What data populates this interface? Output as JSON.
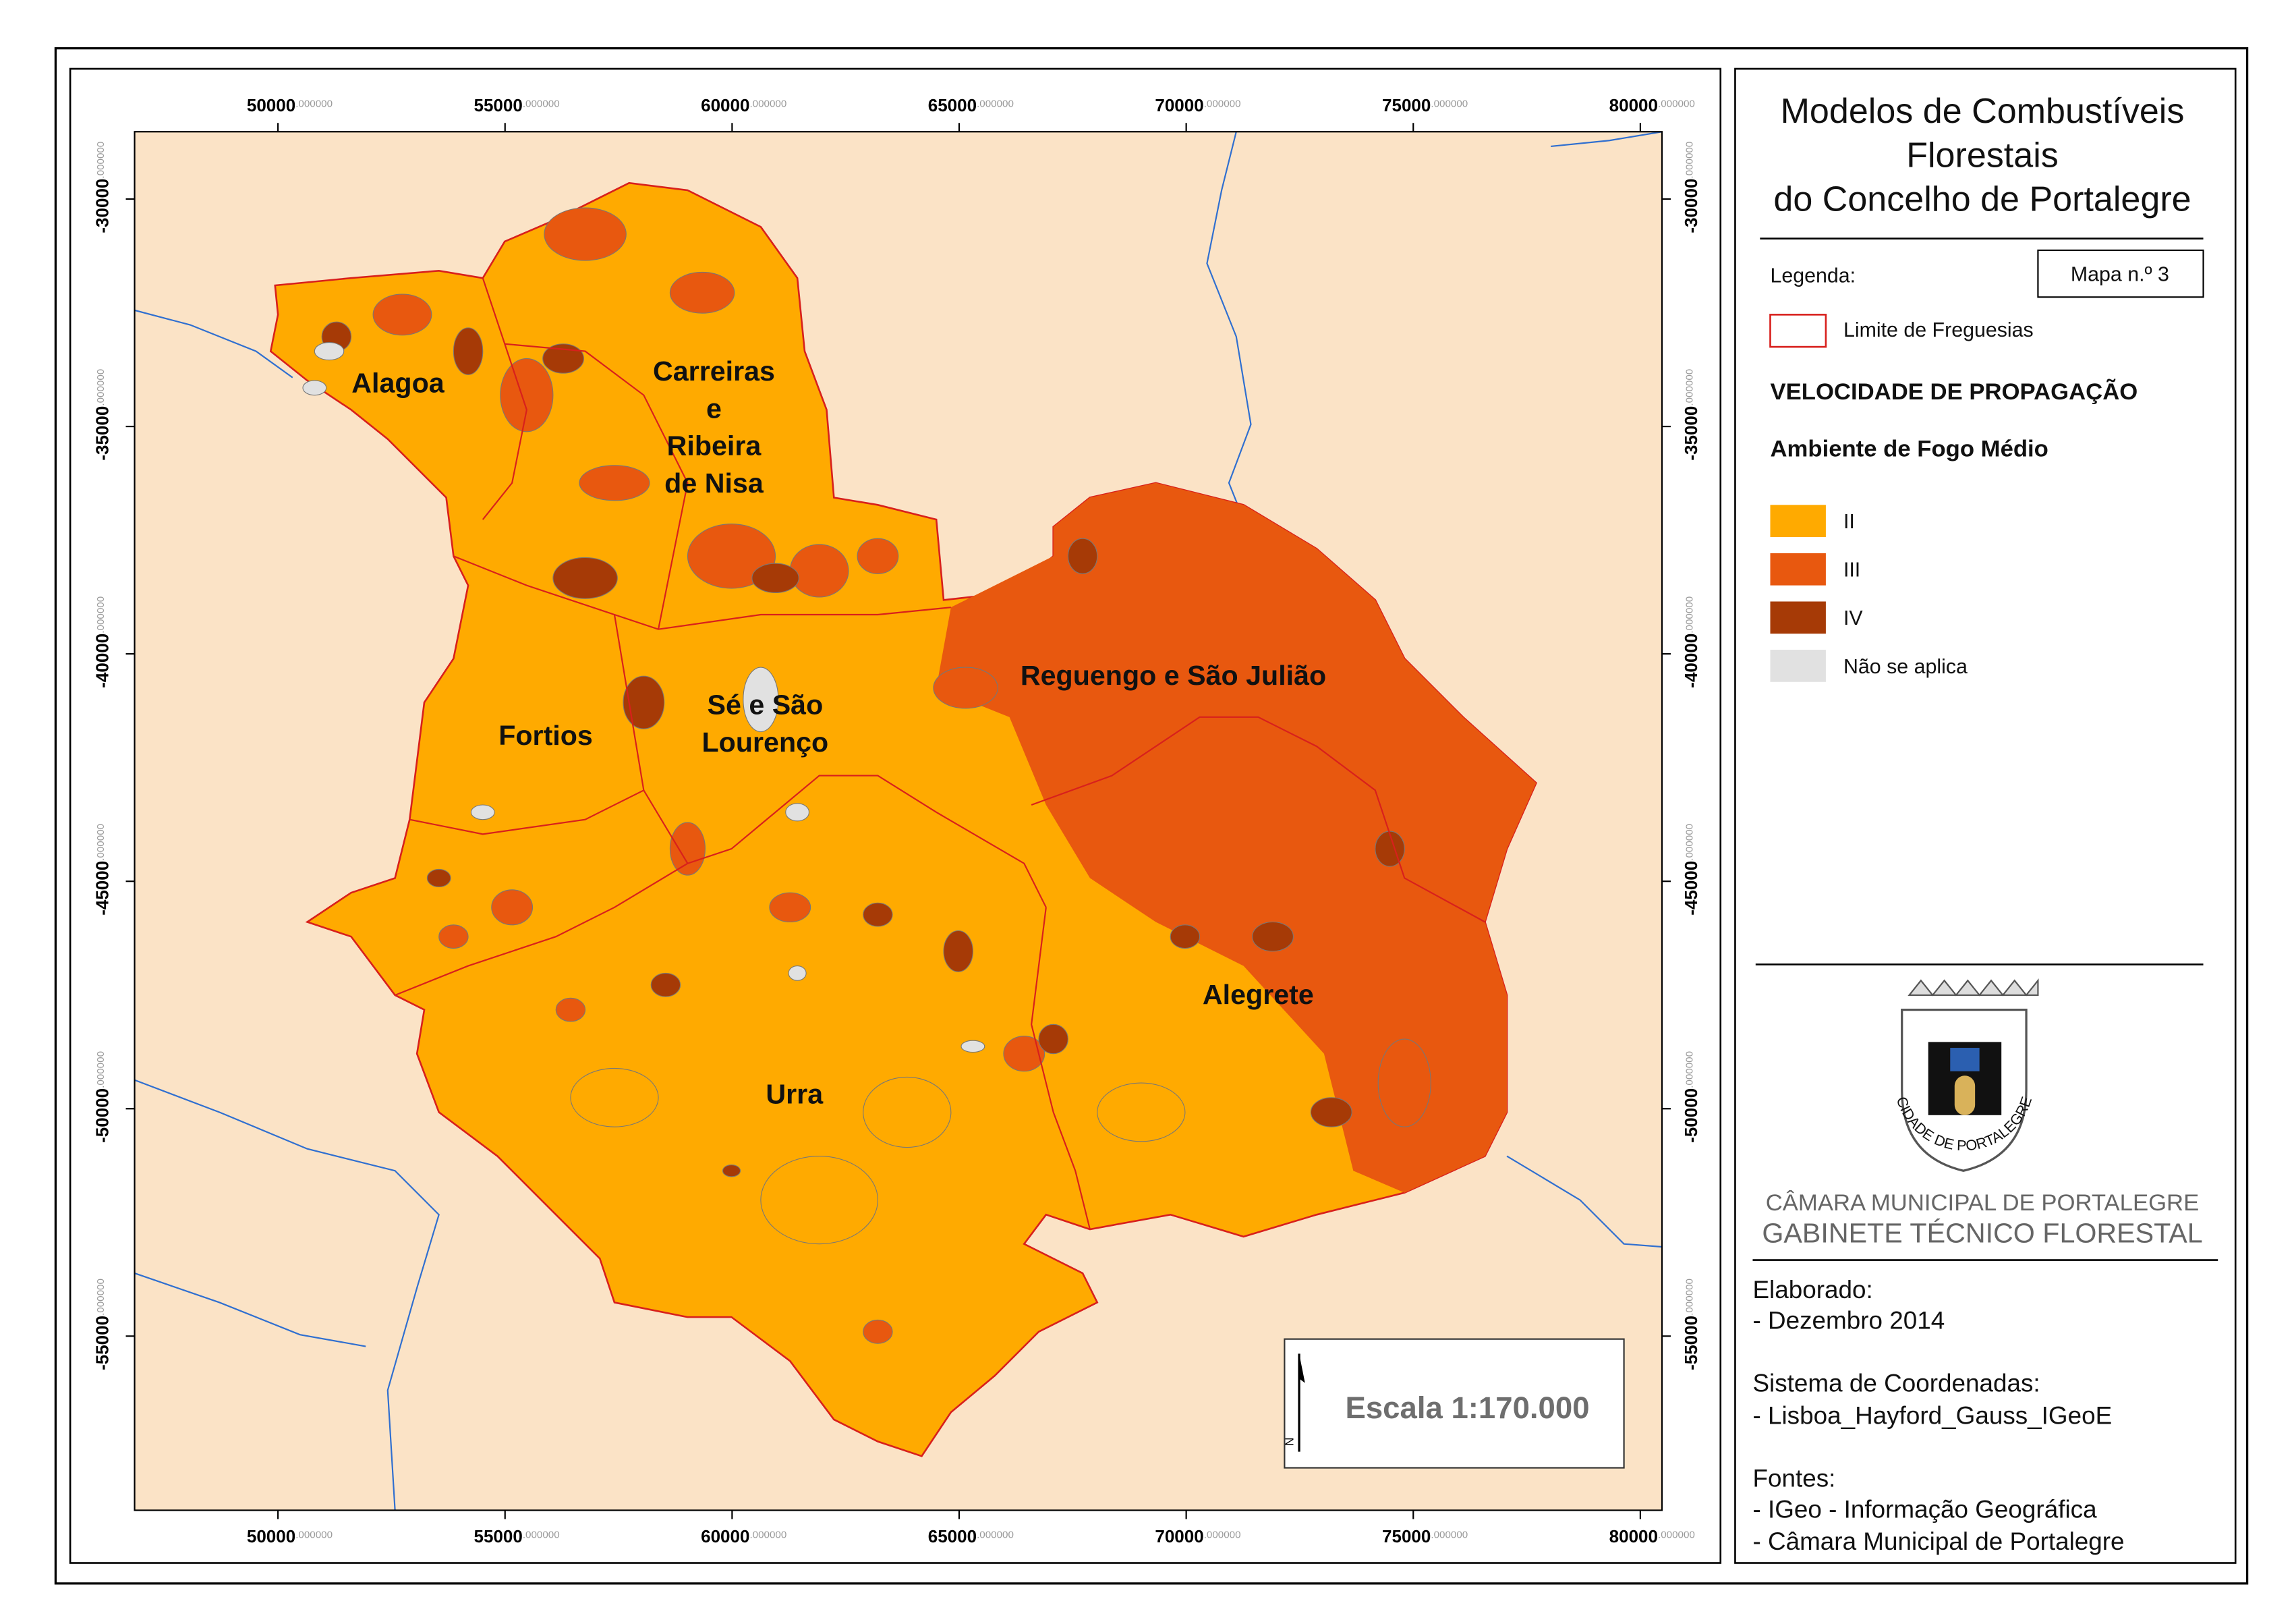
{
  "map_frame": {
    "x_ticks": [
      {
        "value": "50000",
        "decimals": ".000000"
      },
      {
        "value": "55000",
        "decimals": ".000000"
      },
      {
        "value": "60000",
        "decimals": ".000000"
      },
      {
        "value": "65000",
        "decimals": ".000000"
      },
      {
        "value": "70000",
        "decimals": ".000000"
      },
      {
        "value": "75000",
        "decimals": ".000000"
      },
      {
        "value": "80000",
        "decimals": ".000000"
      }
    ],
    "y_ticks": [
      {
        "value": "-30000",
        "decimals": ".000000"
      },
      {
        "value": "-35000",
        "decimals": ".000000"
      },
      {
        "value": "-40000",
        "decimals": ".000000"
      },
      {
        "value": "-45000",
        "decimals": ".000000"
      },
      {
        "value": "-50000",
        "decimals": ".000000"
      },
      {
        "value": "-55000",
        "decimals": ".000000"
      }
    ]
  },
  "map": {
    "parishes": [
      {
        "lines": [
          "Alagoa"
        ]
      },
      {
        "lines": [
          "Carreiras",
          "e",
          "Ribeira",
          "de Nisa"
        ]
      },
      {
        "lines": [
          "Sé e São",
          "Lourenço"
        ]
      },
      {
        "lines": [
          "Reguengo e São Julião"
        ]
      },
      {
        "lines": [
          "Fortios"
        ]
      },
      {
        "lines": [
          "Urra"
        ]
      },
      {
        "lines": [
          "Alegrete"
        ]
      }
    ],
    "scale": "Escala 1:170.000",
    "north": "N"
  },
  "panel": {
    "title": [
      "Modelos de Combustíveis",
      "Florestais",
      "do Concelho de Portalegre"
    ],
    "legend_heading": "Legenda:",
    "map_number": "Mapa n.º 3",
    "boundary_label": "Limite de Freguesias",
    "theme": "VELOCIDADE DE PROPAGAÇÃO",
    "subtheme": "Ambiente de Fogo Médio",
    "classes": [
      {
        "label": "II",
        "color": "#ffaa00"
      },
      {
        "label": "III",
        "color": "#e8580f"
      },
      {
        "label": "IV",
        "color": "#a63a06"
      },
      {
        "label": "Não se aplica",
        "color": "#e1e1e1"
      }
    ],
    "emblem_text": "CIDADE DE PORTALEGRE",
    "institution": [
      "CÂMARA MUNICIPAL DE PORTALEGRE",
      "GABINETE TÉCNICO FLORESTAL"
    ],
    "credits": [
      "Elaborado:",
      "- Dezembro 2014",
      "Sistema de Coordenadas:",
      "- Lisboa_Hayford_Gauss_IGeoE",
      "Fontes:",
      "- IGeo - Informação Geográfica",
      "- Câmara Municipal de Portalegre"
    ]
  }
}
